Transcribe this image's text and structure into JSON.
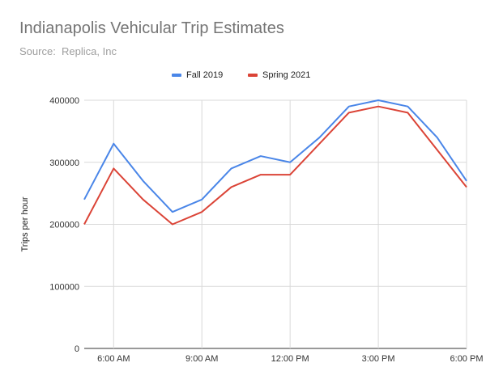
{
  "chart_data": {
    "type": "line",
    "title": "Indianapolis Vehicular Trip Estimates",
    "subtitle": "Source:  Replica, Inc",
    "xlabel": "",
    "ylabel": "Trips per hour",
    "ylim": [
      0,
      400000
    ],
    "yticks": [
      "0",
      "100000",
      "200000",
      "300000",
      "400000"
    ],
    "xlim": [
      5,
      18
    ],
    "xticks": [
      {
        "x": 6,
        "label": "6:00 AM"
      },
      {
        "x": 9,
        "label": "9:00 AM"
      },
      {
        "x": 12,
        "label": "12:00 PM"
      },
      {
        "x": 15,
        "label": "3:00 PM"
      },
      {
        "x": 18,
        "label": "6:00 PM"
      }
    ],
    "x": [
      5,
      6,
      7,
      8,
      9,
      10,
      11,
      12,
      13,
      14,
      15,
      16,
      17,
      18
    ],
    "series": [
      {
        "name": "Fall 2019",
        "color": "#4a86e8",
        "values": [
          240000,
          330000,
          270000,
          220000,
          240000,
          290000,
          310000,
          300000,
          340000,
          390000,
          400000,
          390000,
          340000,
          270000
        ]
      },
      {
        "name": "Spring 2021",
        "color": "#db4437",
        "values": [
          200000,
          290000,
          240000,
          200000,
          220000,
          260000,
          280000,
          280000,
          330000,
          380000,
          390000,
          380000,
          320000,
          260000
        ]
      }
    ],
    "legend": "top",
    "grid": true
  }
}
